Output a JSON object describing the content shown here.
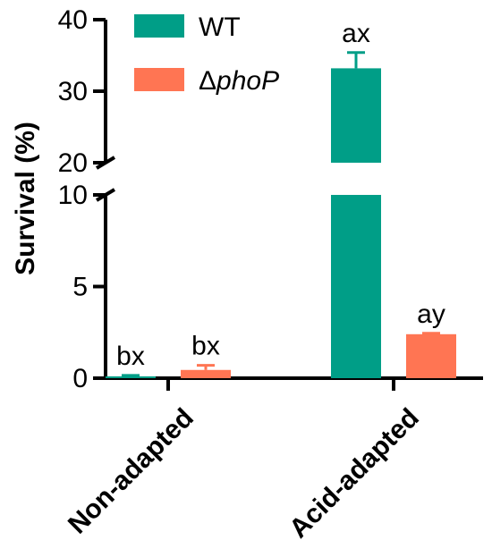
{
  "chart_data": {
    "type": "bar",
    "ylabel": "Survival (%)",
    "categories": [
      "Non-adapted",
      "Acid-adapted"
    ],
    "series": [
      {
        "name": "WT",
        "color": "#009E87",
        "values": [
          0.1,
          33.2
        ],
        "errors": [
          0.05,
          2.2
        ],
        "labels": [
          "bx",
          "ax"
        ]
      },
      {
        "name": "ΔphoP",
        "color": "#FF7553",
        "values": [
          0.45,
          2.4
        ],
        "errors": [
          0.25,
          0.05
        ],
        "labels": [
          "bx",
          "ay"
        ]
      }
    ],
    "yaxis": {
      "broken": true,
      "lower_segment": [
        0,
        10
      ],
      "upper_segment": [
        20,
        40
      ],
      "lower_ticks": [
        "0",
        "5",
        "10"
      ],
      "upper_ticks": [
        "20",
        "30",
        "40"
      ]
    },
    "legend": {
      "position": "top-left",
      "entries": [
        "WT",
        "ΔphoP"
      ]
    }
  }
}
